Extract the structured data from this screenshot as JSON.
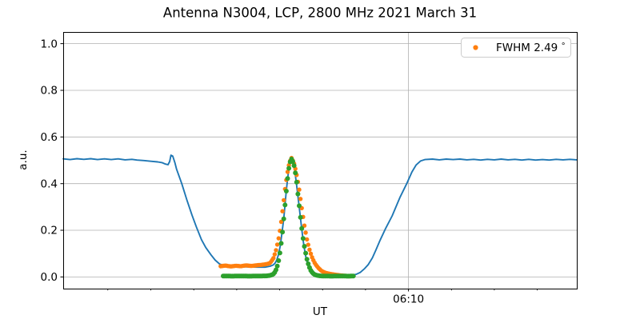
{
  "chart_data": {
    "type": "line+scatter",
    "title": "Antenna N3004, LCP, 2800 MHz 2021 March 31",
    "xlabel": "UT",
    "ylabel": "a.u.",
    "legend": {
      "label": "FWHM 2.49 °",
      "label_main": "FWHM 2.49 ",
      "label_degree": "°",
      "loc": "upper right",
      "marker": "orange-dot"
    },
    "x_axis": {
      "unit": "minutes since 00:00 UT",
      "lim": [
        329.8,
        389.6
      ],
      "major_ticks": [
        370
      ],
      "major_tick_labels": [
        "06:10"
      ],
      "minor_ticks": [
        335,
        340,
        345,
        350,
        355,
        360,
        365,
        375,
        380,
        385
      ],
      "grid": "major-only"
    },
    "y_axis": {
      "lim": [
        -0.05,
        1.05
      ],
      "ticks": [
        0.0,
        0.2,
        0.4,
        0.6,
        0.8,
        1.0
      ],
      "grid": true
    },
    "grid_color": "#b0b0b0",
    "series": [
      {
        "name": "antenna-signal-line",
        "type": "line",
        "color": "#1f77b4",
        "points": [
          [
            329.8,
            0.506
          ],
          [
            330.6,
            0.503
          ],
          [
            331.4,
            0.507
          ],
          [
            332.2,
            0.504
          ],
          [
            333.0,
            0.507
          ],
          [
            333.8,
            0.503
          ],
          [
            334.6,
            0.506
          ],
          [
            335.4,
            0.503
          ],
          [
            336.2,
            0.506
          ],
          [
            337.0,
            0.502
          ],
          [
            337.8,
            0.504
          ],
          [
            338.4,
            0.501
          ],
          [
            339.2,
            0.499
          ],
          [
            340.0,
            0.496
          ],
          [
            340.8,
            0.493
          ],
          [
            341.3,
            0.49
          ],
          [
            341.7,
            0.484
          ],
          [
            342.0,
            0.481
          ],
          [
            342.2,
            0.495
          ],
          [
            342.35,
            0.522
          ],
          [
            342.55,
            0.518
          ],
          [
            342.8,
            0.49
          ],
          [
            343.0,
            0.462
          ],
          [
            343.6,
            0.4
          ],
          [
            344.2,
            0.33
          ],
          [
            344.8,
            0.265
          ],
          [
            345.3,
            0.215
          ],
          [
            345.9,
            0.16
          ],
          [
            346.4,
            0.126
          ],
          [
            347.0,
            0.095
          ],
          [
            347.5,
            0.072
          ],
          [
            348.0,
            0.056
          ],
          [
            348.6,
            0.048
          ],
          [
            349.5,
            0.046
          ],
          [
            350.5,
            0.044
          ],
          [
            351.5,
            0.043
          ],
          [
            352.5,
            0.042
          ],
          [
            353.3,
            0.042
          ],
          [
            353.9,
            0.046
          ],
          [
            354.28,
            0.052
          ],
          [
            354.48,
            0.06
          ],
          [
            354.68,
            0.074
          ],
          [
            354.88,
            0.098
          ],
          [
            355.08,
            0.135
          ],
          [
            355.28,
            0.19
          ],
          [
            355.48,
            0.25
          ],
          [
            355.63,
            0.31
          ],
          [
            355.78,
            0.37
          ],
          [
            355.93,
            0.42
          ],
          [
            356.08,
            0.465
          ],
          [
            356.23,
            0.49
          ],
          [
            356.38,
            0.5
          ],
          [
            356.56,
            0.49
          ],
          [
            356.74,
            0.46
          ],
          [
            356.92,
            0.41
          ],
          [
            357.1,
            0.355
          ],
          [
            357.28,
            0.3
          ],
          [
            357.46,
            0.24
          ],
          [
            357.64,
            0.185
          ],
          [
            357.82,
            0.135
          ],
          [
            358.05,
            0.085
          ],
          [
            358.29,
            0.05
          ],
          [
            358.52,
            0.028
          ],
          [
            358.76,
            0.016
          ],
          [
            359.1,
            0.009
          ],
          [
            359.45,
            0.007
          ],
          [
            360.1,
            0.006
          ],
          [
            361.5,
            0.006
          ],
          [
            362.5,
            0.006
          ],
          [
            363.4,
            0.008
          ],
          [
            363.9,
            0.011
          ],
          [
            364.4,
            0.02
          ],
          [
            364.9,
            0.036
          ],
          [
            365.3,
            0.052
          ],
          [
            365.8,
            0.082
          ],
          [
            366.2,
            0.115
          ],
          [
            366.7,
            0.158
          ],
          [
            367.3,
            0.205
          ],
          [
            368.1,
            0.262
          ],
          [
            369.0,
            0.34
          ],
          [
            369.8,
            0.4
          ],
          [
            370.4,
            0.45
          ],
          [
            370.9,
            0.48
          ],
          [
            371.4,
            0.497
          ],
          [
            371.9,
            0.503
          ],
          [
            372.8,
            0.505
          ],
          [
            373.6,
            0.502
          ],
          [
            374.4,
            0.505
          ],
          [
            375.2,
            0.503
          ],
          [
            376.0,
            0.505
          ],
          [
            376.8,
            0.502
          ],
          [
            377.6,
            0.504
          ],
          [
            378.4,
            0.501
          ],
          [
            379.2,
            0.504
          ],
          [
            380.0,
            0.502
          ],
          [
            380.8,
            0.505
          ],
          [
            381.6,
            0.502
          ],
          [
            382.4,
            0.504
          ],
          [
            383.2,
            0.501
          ],
          [
            384.0,
            0.504
          ],
          [
            384.8,
            0.501
          ],
          [
            385.6,
            0.503
          ],
          [
            386.4,
            0.501
          ],
          [
            387.2,
            0.504
          ],
          [
            388.0,
            0.502
          ],
          [
            388.8,
            0.504
          ],
          [
            389.6,
            0.502
          ]
        ]
      },
      {
        "name": "gaussian-fit-points",
        "type": "scatter",
        "color": "#ff7f0e",
        "marker_interval": 0.15,
        "marker_radius": 2.7,
        "points": [
          [
            348.13,
            0.046
          ],
          [
            348.7,
            0.049
          ],
          [
            349.3,
            0.045
          ],
          [
            349.9,
            0.048
          ],
          [
            350.5,
            0.046
          ],
          [
            351.1,
            0.05
          ],
          [
            351.7,
            0.047
          ],
          [
            352.3,
            0.05
          ],
          [
            352.9,
            0.052
          ],
          [
            353.5,
            0.055
          ],
          [
            353.9,
            0.06
          ],
          [
            354.27,
            0.08
          ],
          [
            354.55,
            0.11
          ],
          [
            354.83,
            0.155
          ],
          [
            355.11,
            0.215
          ],
          [
            355.39,
            0.3
          ],
          [
            355.67,
            0.39
          ],
          [
            355.95,
            0.455
          ],
          [
            356.14,
            0.49
          ],
          [
            356.38,
            0.51
          ],
          [
            356.65,
            0.49
          ],
          [
            356.89,
            0.455
          ],
          [
            357.22,
            0.39
          ],
          [
            357.56,
            0.3
          ],
          [
            357.9,
            0.215
          ],
          [
            358.21,
            0.155
          ],
          [
            358.53,
            0.11
          ],
          [
            358.84,
            0.078
          ],
          [
            359.16,
            0.055
          ],
          [
            359.48,
            0.04
          ],
          [
            359.87,
            0.026
          ],
          [
            360.32,
            0.018
          ],
          [
            360.9,
            0.013
          ],
          [
            361.6,
            0.009
          ],
          [
            362.3,
            0.006
          ],
          [
            362.9,
            0.004
          ],
          [
            363.4,
            0.003
          ]
        ]
      },
      {
        "name": "drift-scan-data-points",
        "type": "scatter",
        "color": "#2ca02c",
        "marker_interval": 0.15,
        "marker_radius": 3.0,
        "points": [
          [
            348.43,
            0.004
          ],
          [
            349.5,
            0.0035
          ],
          [
            350.5,
            0.004
          ],
          [
            351.5,
            0.0035
          ],
          [
            352.5,
            0.004
          ],
          [
            353.4,
            0.0045
          ],
          [
            353.8,
            0.006
          ],
          [
            354.1,
            0.009
          ],
          [
            354.28,
            0.013
          ],
          [
            354.48,
            0.022
          ],
          [
            354.68,
            0.039
          ],
          [
            354.88,
            0.07
          ],
          [
            355.08,
            0.114
          ],
          [
            355.28,
            0.174
          ],
          [
            355.43,
            0.229
          ],
          [
            355.58,
            0.288
          ],
          [
            355.73,
            0.349
          ],
          [
            355.88,
            0.406
          ],
          [
            356.03,
            0.454
          ],
          [
            356.18,
            0.489
          ],
          [
            356.38,
            0.505
          ],
          [
            356.62,
            0.489
          ],
          [
            356.8,
            0.454
          ],
          [
            356.98,
            0.406
          ],
          [
            357.15,
            0.349
          ],
          [
            357.33,
            0.288
          ],
          [
            357.51,
            0.229
          ],
          [
            357.69,
            0.174
          ],
          [
            357.93,
            0.12
          ],
          [
            358.17,
            0.077
          ],
          [
            358.4,
            0.047
          ],
          [
            358.63,
            0.028
          ],
          [
            358.86,
            0.016
          ],
          [
            359.09,
            0.01
          ],
          [
            359.32,
            0.007
          ],
          [
            359.65,
            0.005
          ],
          [
            360.0,
            0.004
          ],
          [
            361.0,
            0.0035
          ],
          [
            362.0,
            0.004
          ],
          [
            363.0,
            0.0035
          ],
          [
            363.6,
            0.004
          ]
        ]
      }
    ]
  }
}
